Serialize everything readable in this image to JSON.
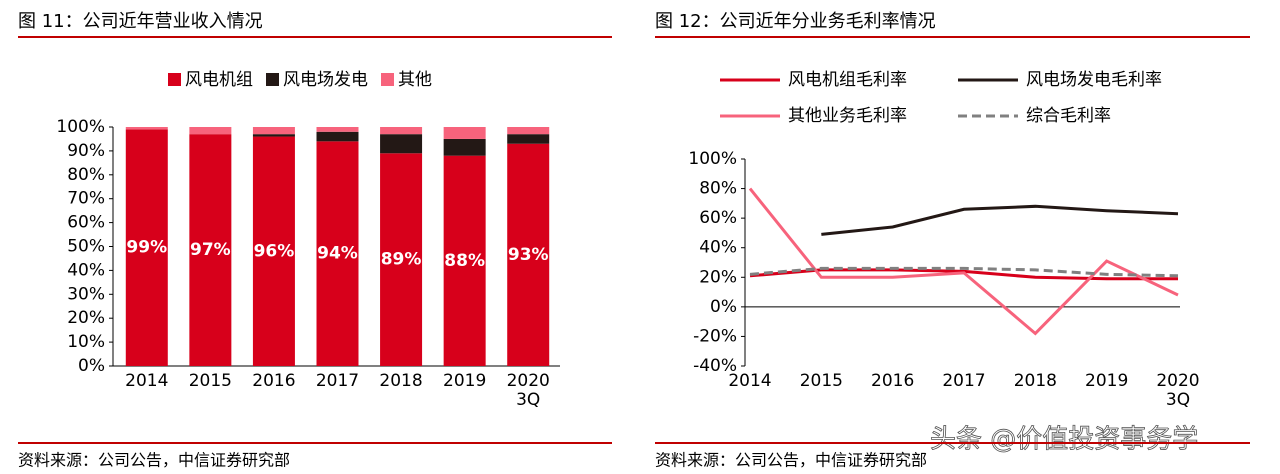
{
  "chart_data": [
    {
      "type": "stacked_bar",
      "title": "图 11：公司近年营业收入情况",
      "source": "资料来源：公司公告，中信证券研究部",
      "categories": [
        "2014",
        "2015",
        "2016",
        "2017",
        "2018",
        "2019",
        "2020\n3Q"
      ],
      "series": [
        {
          "name": "风电机组",
          "color": "#d7001b",
          "values": [
            99,
            97,
            96,
            94,
            89,
            88,
            93
          ],
          "value_labels": [
            "99%",
            "97%",
            "96%",
            "94%",
            "89%",
            "88%",
            "93%"
          ]
        },
        {
          "name": "风电场发电",
          "color": "#231815",
          "values": [
            0,
            0,
            1,
            4,
            8,
            7,
            4
          ]
        },
        {
          "name": "其他",
          "color": "#f7637c",
          "values": [
            1,
            3,
            3,
            2,
            3,
            5,
            3
          ]
        }
      ],
      "ylim": [
        0,
        100
      ],
      "yticks": [
        {
          "value": 0,
          "label": "0%"
        },
        {
          "value": 10,
          "label": "10%"
        },
        {
          "value": 20,
          "label": "20%"
        },
        {
          "value": 30,
          "label": "30%"
        },
        {
          "value": 40,
          "label": "40%"
        },
        {
          "value": 50,
          "label": "50%"
        },
        {
          "value": 60,
          "label": "60%"
        },
        {
          "value": 70,
          "label": "70%"
        },
        {
          "value": 80,
          "label": "80%"
        },
        {
          "value": 90,
          "label": "90%"
        },
        {
          "value": 100,
          "label": "100%"
        }
      ]
    },
    {
      "type": "line",
      "title": "图 12：公司近年分业务毛利率情况",
      "source": "资料来源：公司公告，中信证券研究部",
      "categories": [
        "2014",
        "2015",
        "2016",
        "2017",
        "2018",
        "2019",
        "2020\n3Q"
      ],
      "series": [
        {
          "name": "风电机组毛利率",
          "color": "#d7001b",
          "dash": false,
          "values": [
            21,
            25,
            25,
            24,
            20,
            19,
            19
          ]
        },
        {
          "name": "风电场发电毛利率",
          "color": "#231815",
          "dash": false,
          "values": [
            null,
            49,
            54,
            66,
            68,
            65,
            63
          ]
        },
        {
          "name": "其他业务毛利率",
          "color": "#f7637c",
          "dash": false,
          "values": [
            80,
            20,
            20,
            23,
            -18,
            31,
            8
          ]
        },
        {
          "name": "综合毛利率",
          "color": "#808080",
          "dash": true,
          "values": [
            22,
            26,
            26,
            26,
            25,
            22,
            21
          ]
        }
      ],
      "ylim": [
        -40,
        100
      ],
      "yticks": [
        {
          "value": -40,
          "label": "-40%"
        },
        {
          "value": -20,
          "label": "-20%"
        },
        {
          "value": 0,
          "label": "0%"
        },
        {
          "value": 20,
          "label": "20%"
        },
        {
          "value": 40,
          "label": "40%"
        },
        {
          "value": 60,
          "label": "60%"
        },
        {
          "value": 80,
          "label": "80%"
        },
        {
          "value": 100,
          "label": "100%"
        }
      ]
    }
  ],
  "watermark": "头条 @价值投资事务学"
}
